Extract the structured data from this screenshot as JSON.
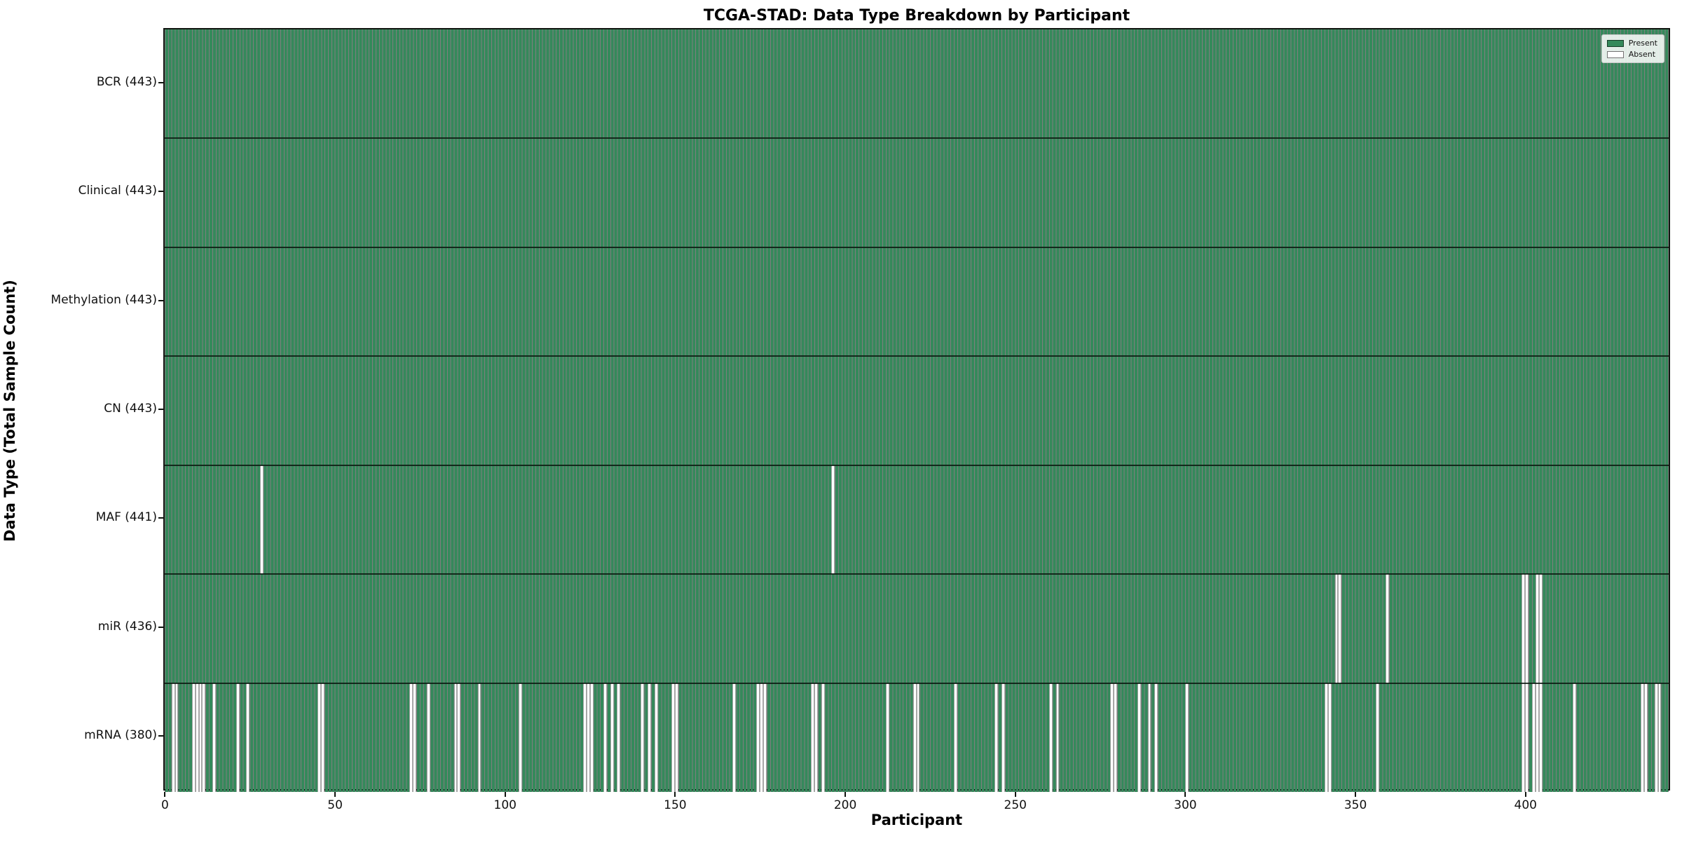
{
  "title": "TCGA-STAD: Data Type Breakdown by Participant",
  "xlabel": "Participant",
  "ylabel": "Data Type (Total Sample Count)",
  "legend": {
    "present_label": "Present",
    "absent_label": "Absent"
  },
  "colors": {
    "present": "#35895B",
    "absent": "#FFFFFF",
    "bar_edge": "rgba(0,0,0,0.5)",
    "axis": "#101510"
  },
  "chart_data": {
    "type": "heatmap",
    "title": "TCGA-STAD: Data Type Breakdown by Participant",
    "xlabel": "Participant",
    "ylabel": "Data Type (Total Sample Count)",
    "x_ticks": [
      0,
      50,
      100,
      150,
      200,
      250,
      300,
      350,
      400
    ],
    "x_range": [
      0,
      443
    ],
    "n_participants": 443,
    "grid": false,
    "legend_position": "upper right",
    "legend_entries": [
      "Present",
      "Absent"
    ],
    "rows": [
      {
        "data_type": "BCR",
        "total": 443,
        "label": "BCR (443)",
        "absent_participants": []
      },
      {
        "data_type": "Clinical",
        "total": 443,
        "label": "Clinical (443)",
        "absent_participants": []
      },
      {
        "data_type": "Methylation",
        "total": 443,
        "label": "Methylation (443)",
        "absent_participants": []
      },
      {
        "data_type": "CN",
        "total": 443,
        "label": "CN (443)",
        "absent_participants": []
      },
      {
        "data_type": "MAF",
        "total": 441,
        "label": "MAF (441)",
        "absent_participants": [
          28,
          196
        ]
      },
      {
        "data_type": "miR",
        "total": 436,
        "label": "miR (436)",
        "absent_participants": [
          344,
          345,
          359,
          399,
          400,
          403,
          404
        ]
      },
      {
        "data_type": "mRNA",
        "total": 380,
        "label": "mRNA (380)",
        "absent_participants": [
          2,
          3,
          8,
          9,
          10,
          11,
          14,
          21,
          24,
          45,
          46,
          72,
          73,
          77,
          85,
          86,
          92,
          104,
          123,
          124,
          125,
          129,
          131,
          133,
          140,
          142,
          144,
          149,
          150,
          167,
          174,
          175,
          176,
          190,
          191,
          193,
          212,
          220,
          221,
          232,
          244,
          246,
          260,
          262,
          278,
          279,
          286,
          289,
          291,
          300,
          341,
          342,
          356,
          399,
          400,
          402,
          403,
          404,
          414,
          434,
          435,
          438,
          439
        ]
      }
    ]
  }
}
